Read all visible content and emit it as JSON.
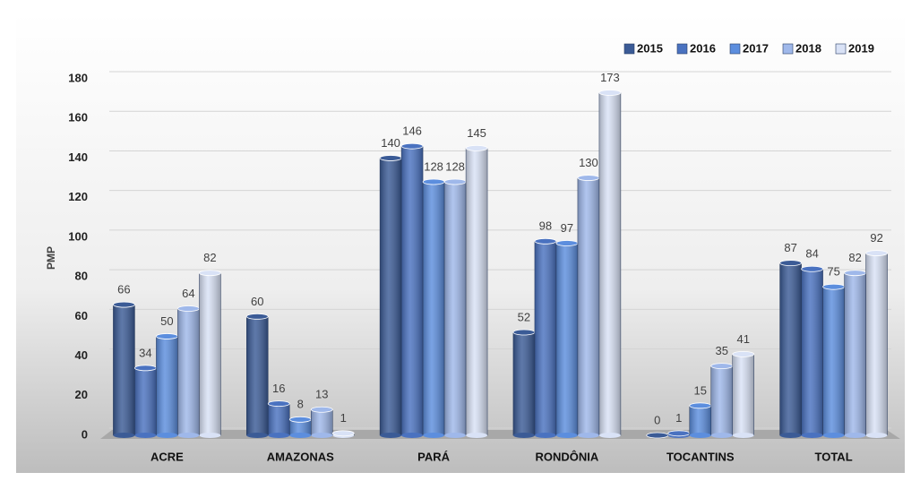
{
  "chart_data": {
    "type": "bar",
    "y_label": "PMP",
    "categories": [
      "ACRE",
      "AMAZONAS",
      "PARÁ",
      "RONDÔNIA",
      "TOCANTINS",
      "TOTAL"
    ],
    "series": [
      {
        "name": "2015",
        "color": "#3b5b96",
        "values": [
          66,
          60,
          140,
          52,
          0,
          87
        ]
      },
      {
        "name": "2016",
        "color": "#4a72c0",
        "values": [
          34,
          16,
          146,
          98,
          1,
          84
        ]
      },
      {
        "name": "2017",
        "color": "#5c8ede",
        "values": [
          50,
          8,
          128,
          97,
          15,
          75
        ]
      },
      {
        "name": "2018",
        "color": "#9fb8ea",
        "values": [
          64,
          13,
          128,
          130,
          35,
          82
        ]
      },
      {
        "name": "2019",
        "color": "#d9e2f6",
        "values": [
          82,
          1,
          145,
          173,
          41,
          92
        ]
      }
    ],
    "ylim": [
      0,
      180
    ],
    "yticks": [
      0,
      20,
      40,
      60,
      80,
      100,
      120,
      140,
      160,
      180
    ],
    "grid": true
  }
}
